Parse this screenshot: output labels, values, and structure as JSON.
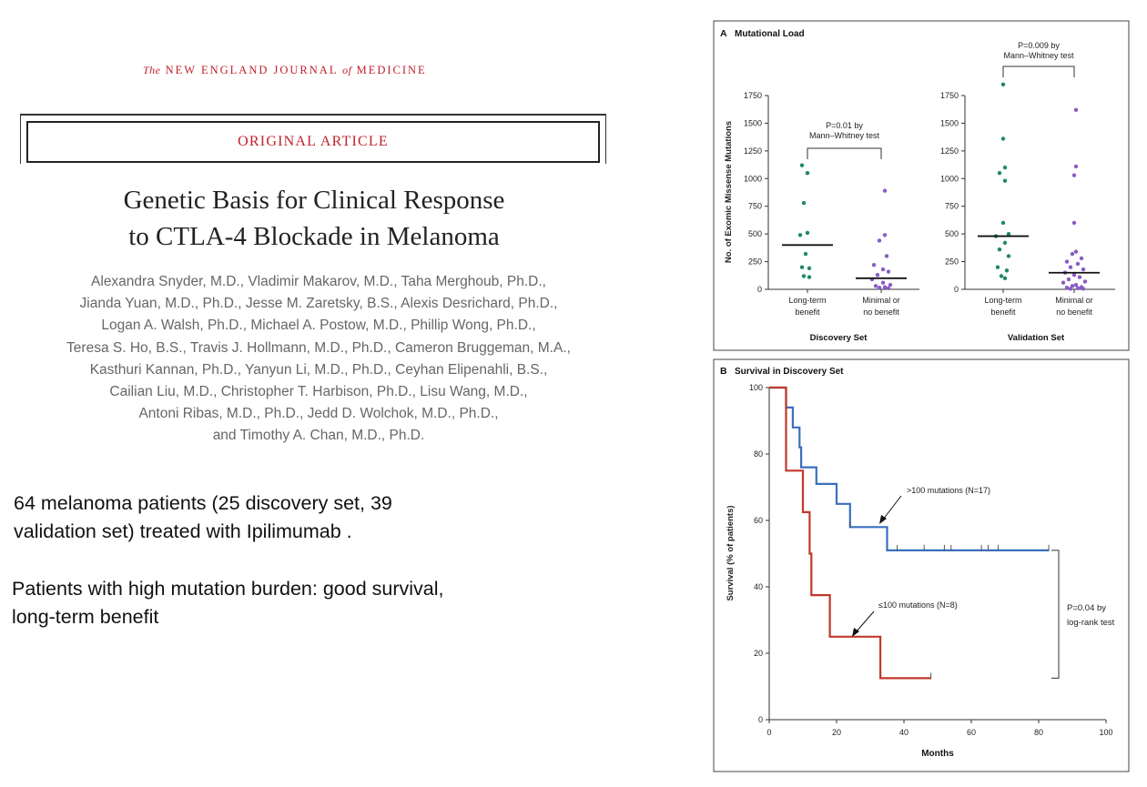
{
  "journal": {
    "prefix": "The",
    "main": "NEW ENGLAND JOURNAL",
    "of": "of",
    "suffix": "MEDICINE"
  },
  "article_type": "ORIGINAL ARTICLE",
  "title_lines": [
    "Genetic Basis for Clinical Response",
    "to CTLA-4 Blockade in Melanoma"
  ],
  "authors_lines": [
    "Alexandra Snyder, M.D., Vladimir Makarov, M.D., Taha Merghoub, Ph.D.,",
    "Jianda Yuan, M.D., Ph.D., Jesse M. Zaretsky, B.S., Alexis Desrichard, Ph.D.,",
    "Logan A. Walsh, Ph.D., Michael A. Postow, M.D., Phillip Wong, Ph.D.,",
    "Teresa S. Ho, B.S., Travis J. Hollmann, M.D., Ph.D., Cameron Bruggeman, M.A.,",
    "Kasthuri Kannan, Ph.D., Yanyun Li, M.D., Ph.D., Ceyhan Elipenahli, B.S.,",
    "Cailian Liu, M.D., Christopher T. Harbison, Ph.D., Lisu Wang, M.D.,",
    "Antoni Ribas, M.D., Ph.D., Jedd D. Wolchok, M.D., Ph.D.,",
    "and Timothy A. Chan, M.D., Ph.D."
  ],
  "notes": [
    [
      "64 melanoma patients (25 discovery set, 39",
      "validation set) treated with Ipilimumab ."
    ],
    [
      "Patients with high mutation burden: good survival,",
      "long-term benefit"
    ]
  ],
  "colors": {
    "red_title": "#c0202b",
    "green": "#1f8a60",
    "purple": "#8a5cc6",
    "km_blue": "#3a6fc0",
    "km_red": "#c0392b"
  },
  "chart_data": [
    {
      "type": "scatter",
      "panel_label": "A",
      "title": "Mutational Load",
      "ylabel": "No. of Exomic Missense Mutations",
      "ylim": [
        0,
        1750
      ],
      "yticks": [
        0,
        250,
        500,
        750,
        1000,
        1250,
        1500,
        1750
      ],
      "groups": [
        {
          "set": "Discovery Set",
          "annotation": [
            "P=0.01 by",
            "Mann–Whitney test"
          ],
          "categories": [
            {
              "label": [
                "Long-term",
                "benefit"
              ],
              "color": "#1f8a60",
              "median": 400,
              "points": [
                [
                  -0.15,
                  1120
                ],
                [
                  0,
                  1050
                ],
                [
                  -0.1,
                  780
                ],
                [
                  -0.2,
                  490
                ],
                [
                  0,
                  510
                ],
                [
                  -0.05,
                  320
                ],
                [
                  -0.15,
                  200
                ],
                [
                  0.05,
                  190
                ],
                [
                  -0.1,
                  120
                ],
                [
                  0.05,
                  110
                ]
              ]
            },
            {
              "label": [
                "Minimal or",
                "no benefit"
              ],
              "color": "#8a5cc6",
              "median": 100,
              "points": [
                [
                  0.1,
                  890
                ],
                [
                  0.1,
                  490
                ],
                [
                  -0.05,
                  440
                ],
                [
                  0.15,
                  300
                ],
                [
                  -0.2,
                  220
                ],
                [
                  0.05,
                  180
                ],
                [
                  0.2,
                  160
                ],
                [
                  -0.1,
                  130
                ],
                [
                  -0.25,
                  90
                ],
                [
                  0.05,
                  60
                ],
                [
                  0.25,
                  40
                ],
                [
                  -0.15,
                  30
                ],
                [
                  0.1,
                  20
                ],
                [
                  -0.05,
                  15
                ],
                [
                  0.2,
                  10
                ]
              ]
            }
          ]
        },
        {
          "set": "Validation Set",
          "annotation": [
            "P=0.009 by",
            "Mann–Whitney test"
          ],
          "categories": [
            {
              "label": [
                "Long-term",
                "benefit"
              ],
              "color": "#1f8a60",
              "median": 480,
              "points": [
                [
                  0,
                  1850
                ],
                [
                  0,
                  1360
                ],
                [
                  0.05,
                  1100
                ],
                [
                  -0.1,
                  1050
                ],
                [
                  0.05,
                  980
                ],
                [
                  0,
                  600
                ],
                [
                  -0.2,
                  480
                ],
                [
                  0.15,
                  500
                ],
                [
                  0.05,
                  420
                ],
                [
                  -0.1,
                  360
                ],
                [
                  0.15,
                  300
                ],
                [
                  -0.15,
                  200
                ],
                [
                  0.1,
                  170
                ],
                [
                  -0.05,
                  120
                ],
                [
                  0.05,
                  100
                ]
              ]
            },
            {
              "label": [
                "Minimal or",
                "no benefit"
              ],
              "color": "#8a5cc6",
              "median": 150,
              "points": [
                [
                  0.05,
                  1620
                ],
                [
                  0.05,
                  1110
                ],
                [
                  0,
                  1030
                ],
                [
                  0,
                  600
                ],
                [
                  0.05,
                  340
                ],
                [
                  -0.05,
                  320
                ],
                [
                  0.2,
                  280
                ],
                [
                  -0.2,
                  250
                ],
                [
                  0.1,
                  230
                ],
                [
                  -0.1,
                  200
                ],
                [
                  0.25,
                  180
                ],
                [
                  -0.25,
                  150
                ],
                [
                  0,
                  130
                ],
                [
                  0.15,
                  110
                ],
                [
                  -0.15,
                  90
                ],
                [
                  0.3,
                  70
                ],
                [
                  -0.3,
                  60
                ],
                [
                  0.05,
                  40
                ],
                [
                  -0.05,
                  30
                ],
                [
                  0.2,
                  20
                ],
                [
                  -0.2,
                  15
                ],
                [
                  0.1,
                  10
                ],
                [
                  -0.1,
                  5
                ],
                [
                  0.25,
                  5
                ]
              ]
            }
          ]
        }
      ]
    },
    {
      "type": "line",
      "panel_label": "B",
      "title": "Survival in Discovery Set",
      "xlabel": "Months",
      "ylabel": "Survival (% of patients)",
      "xlim": [
        0,
        100
      ],
      "ylim": [
        0,
        100
      ],
      "xticks": [
        0,
        20,
        40,
        60,
        80,
        100
      ],
      "yticks": [
        0,
        20,
        40,
        60,
        80,
        100
      ],
      "annotation": [
        "P=0.04 by",
        "log-rank test"
      ],
      "series": [
        {
          "name": ">100 mutations (N=17)",
          "color": "#3a6fc0",
          "steps": [
            [
              0,
              100
            ],
            [
              5,
              100
            ],
            [
              5,
              94
            ],
            [
              7,
              94
            ],
            [
              7,
              88
            ],
            [
              9,
              88
            ],
            [
              9,
              82
            ],
            [
              9.5,
              82
            ],
            [
              9.5,
              76
            ],
            [
              14,
              76
            ],
            [
              14,
              71
            ],
            [
              20,
              71
            ],
            [
              20,
              65
            ],
            [
              24,
              65
            ],
            [
              24,
              58
            ],
            [
              35,
              58
            ],
            [
              35,
              51
            ],
            [
              83,
              51
            ]
          ],
          "censor_x": [
            24,
            38,
            46,
            52,
            54,
            63,
            65,
            68,
            83
          ]
        },
        {
          "name": "≤100 mutations (N=8)",
          "color": "#c0392b",
          "steps": [
            [
              0,
              100
            ],
            [
              5,
              100
            ],
            [
              5,
              75
            ],
            [
              10,
              75
            ],
            [
              10,
              62.5
            ],
            [
              12,
              62.5
            ],
            [
              12,
              50
            ],
            [
              12.5,
              50
            ],
            [
              12.5,
              37.5
            ],
            [
              18,
              37.5
            ],
            [
              18,
              25
            ],
            [
              33,
              25
            ],
            [
              33,
              12.5
            ],
            [
              48,
              12.5
            ]
          ],
          "censor_x": [
            48
          ]
        }
      ]
    }
  ]
}
